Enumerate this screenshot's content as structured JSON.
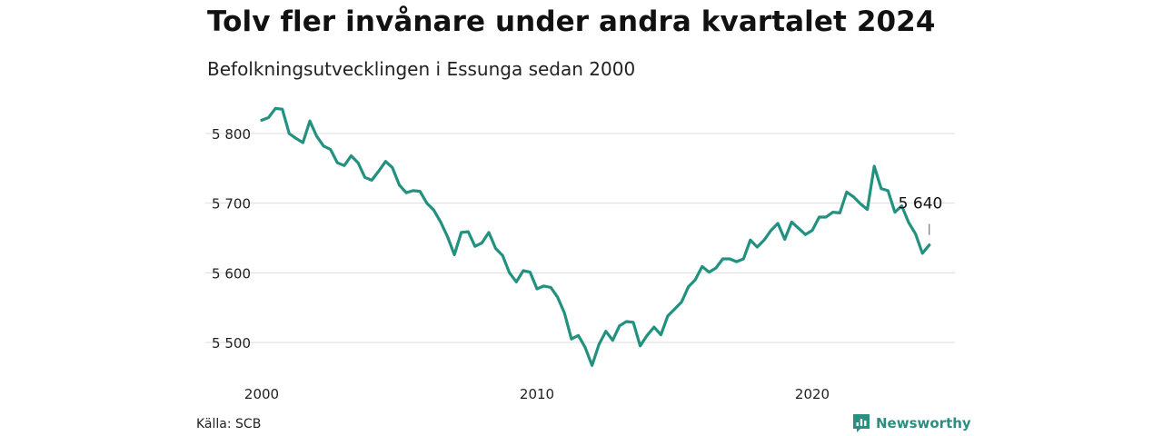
{
  "title": "Tolv fler invånare under andra kvartalet 2024",
  "subtitle": "Befolkningsutvecklingen i Essunga sedan 2000",
  "source": "Källa: SCB",
  "brand": {
    "name": "Newsworthy",
    "icon": "newsworthy-logo-icon",
    "color": "#2a8f80"
  },
  "colors": {
    "line": "#22917f",
    "grid": "#dddddd",
    "text": "#222222"
  },
  "chart_data": {
    "type": "line",
    "title": "Tolv fler invånare under andra kvartalet 2024",
    "subtitle": "Befolkningsutvecklingen i Essunga sedan 2000",
    "xlabel": "",
    "ylabel": "",
    "x_start": 2000.0,
    "x_step": 0.25,
    "xlim": [
      2000,
      2024.25
    ],
    "ylim": [
      5460,
      5845
    ],
    "x_ticks": [
      2000,
      2010,
      2020
    ],
    "x_tick_labels": [
      "2000",
      "2010",
      "2020"
    ],
    "y_ticks": [
      5500,
      5600,
      5700,
      5800
    ],
    "y_tick_labels": [
      "5 500",
      "5 600",
      "5 700",
      "5 800"
    ],
    "grid": true,
    "legend": "none",
    "end_label": "5 640",
    "values": [
      5819,
      5823,
      5836,
      5835,
      5800,
      5793,
      5787,
      5818,
      5796,
      5782,
      5777,
      5758,
      5754,
      5768,
      5758,
      5737,
      5733,
      5746,
      5760,
      5751,
      5726,
      5715,
      5718,
      5717,
      5700,
      5690,
      5673,
      5652,
      5626,
      5658,
      5659,
      5638,
      5643,
      5658,
      5635,
      5625,
      5600,
      5587,
      5603,
      5601,
      5577,
      5581,
      5579,
      5565,
      5542,
      5505,
      5510,
      5493,
      5467,
      5497,
      5516,
      5503,
      5524,
      5530,
      5529,
      5495,
      5510,
      5522,
      5511,
      5538,
      5548,
      5558,
      5580,
      5590,
      5609,
      5601,
      5607,
      5620,
      5620,
      5616,
      5620,
      5647,
      5637,
      5647,
      5661,
      5671,
      5648,
      5673,
      5664,
      5655,
      5661,
      5680,
      5680,
      5687,
      5686,
      5716,
      5709,
      5699,
      5691,
      5753,
      5721,
      5718,
      5687,
      5696,
      5672,
      5656,
      5628,
      5640
    ]
  }
}
